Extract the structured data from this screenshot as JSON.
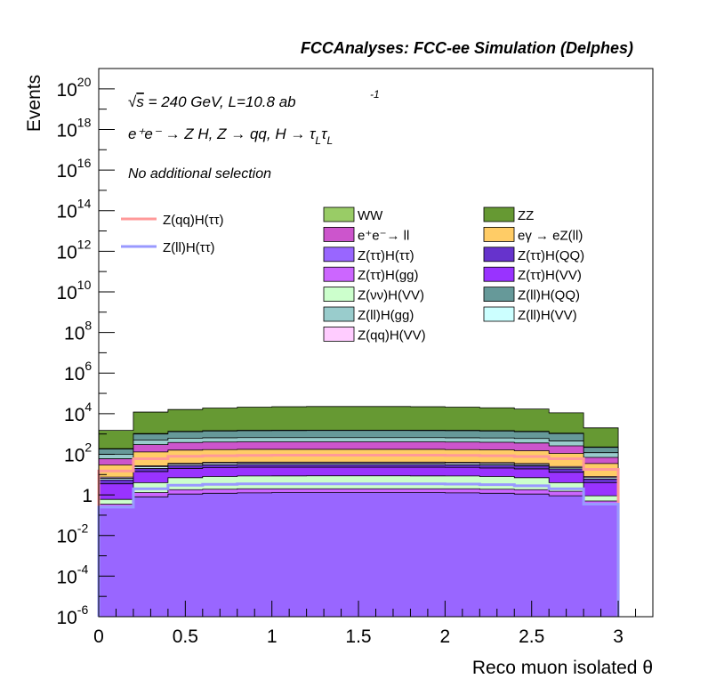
{
  "chart_data": {
    "type": "area",
    "title": "FCCAnalyses: FCC-ee Simulation (Delphes)",
    "xlabel": "Reco muon isolated θ",
    "ylabel": "Events",
    "xlim": [
      0,
      3.2
    ],
    "ylim": [
      1e-06,
      1e+21
    ],
    "yscale": "log",
    "grid": false,
    "annotations": {
      "line1_prefix": "√",
      "line1_s": "s",
      "line1_rest": " = 240 GeV, L=10.8 ab",
      "line1_sup": "-1",
      "line2": "e⁺e⁻ → Z H, Z  → qq, H  → τ",
      "line2_sub1": "L",
      "line2_tau": "τ",
      "line2_sub2": "L",
      "line3": "No additional selection"
    },
    "x_ticks": [
      "0",
      "0.5",
      "1",
      "1.5",
      "2",
      "2.5",
      "3"
    ],
    "x_tick_values": [
      0,
      0.5,
      1,
      1.5,
      2,
      2.5,
      3
    ],
    "y_ticks": [
      {
        "exp": -6,
        "base": "10",
        "sup": "-6"
      },
      {
        "exp": -4,
        "base": "10",
        "sup": "-4"
      },
      {
        "exp": -2,
        "base": "10",
        "sup": "-2"
      },
      {
        "exp": 0,
        "base": "1",
        "sup": ""
      },
      {
        "exp": 2,
        "base": "10",
        "sup": "2"
      },
      {
        "exp": 4,
        "base": "10",
        "sup": "4"
      },
      {
        "exp": 6,
        "base": "10",
        "sup": "6"
      },
      {
        "exp": 8,
        "base": "10",
        "sup": "8"
      },
      {
        "exp": 10,
        "base": "10",
        "sup": "10"
      },
      {
        "exp": 12,
        "base": "10",
        "sup": "12"
      },
      {
        "exp": 14,
        "base": "10",
        "sup": "14"
      },
      {
        "exp": 16,
        "base": "10",
        "sup": "16"
      },
      {
        "exp": 18,
        "base": "10",
        "sup": "18"
      },
      {
        "exp": 20,
        "base": "10",
        "sup": "20"
      }
    ],
    "bin_edges": [
      0,
      0.2,
      0.4,
      0.6,
      0.8,
      1.0,
      1.2,
      1.4,
      1.6,
      1.8,
      2.0,
      2.2,
      2.4,
      2.6,
      2.8,
      3.0
    ],
    "stack_order_bottom_to_top": "series list order",
    "stacked_totals": [
      {
        "name": "Z(ττ)H(ττ)",
        "color": "#9966ff",
        "values": [
          0.25,
          0.8,
          1.1,
          1.2,
          1.25,
          1.3,
          1.3,
          1.3,
          1.3,
          1.3,
          1.25,
          1.2,
          1.1,
          0.9,
          0.35
        ]
      },
      {
        "name": "Z(ττ)H(gg)",
        "color": "#cc66ff",
        "values": [
          0.35,
          1.3,
          1.8,
          1.9,
          2.0,
          2.0,
          2.0,
          2.0,
          2.0,
          2.0,
          2.0,
          1.9,
          1.8,
          1.5,
          0.5
        ]
      },
      {
        "name": "Z(νν)H(VV)",
        "color": "#ccffcc",
        "values": [
          0.6,
          4,
          7,
          8,
          8.5,
          8.6,
          8.7,
          8.7,
          8.7,
          8.6,
          8.5,
          8,
          7,
          4,
          0.9
        ]
      },
      {
        "name": "Z(ττ)H(VV)",
        "color": "#9933ff",
        "values": [
          3.5,
          14,
          20,
          22,
          23,
          23,
          23,
          23,
          23,
          23,
          22.5,
          21,
          19,
          13,
          4
        ]
      },
      {
        "name": "Z(ττ)H(QQ)",
        "color": "#6633cc",
        "values": [
          5.5,
          20,
          28,
          30,
          31,
          31,
          31,
          31,
          31,
          31,
          30,
          29,
          27,
          19,
          6
        ]
      },
      {
        "name": "Z(ll)H(VV)",
        "color": "#ccffff",
        "values": [
          6.5,
          24,
          32,
          35,
          36,
          36,
          36,
          36,
          36,
          36,
          35,
          34,
          31,
          22,
          7
        ]
      },
      {
        "name": "Z(qq)H(VV)",
        "color": "#ffccff",
        "values": [
          7.5,
          27,
          36,
          40,
          41,
          41,
          41,
          41,
          41,
          41,
          40,
          39,
          35,
          25,
          8
        ]
      },
      {
        "name": "eγ → eZ(ll)",
        "color": "#ffcc66",
        "values": [
          30,
          130,
          160,
          170,
          175,
          175,
          175,
          175,
          175,
          175,
          170,
          165,
          150,
          110,
          35
        ]
      },
      {
        "name": "e⁺e⁻→ ll",
        "color": "#cc55cc",
        "values": [
          60,
          300,
          380,
          400,
          410,
          410,
          410,
          410,
          410,
          410,
          400,
          390,
          360,
          260,
          70
        ]
      },
      {
        "name": "Z(ll)H(gg)",
        "color": "#99cccc",
        "values": [
          100,
          500,
          620,
          650,
          660,
          660,
          660,
          660,
          660,
          660,
          650,
          640,
          600,
          450,
          120
        ]
      },
      {
        "name": "Z(ll)H(QQ)",
        "color": "#669999",
        "values": [
          180,
          1000,
          1300,
          1400,
          1450,
          1470,
          1480,
          1480,
          1480,
          1470,
          1450,
          1400,
          1300,
          1050,
          220
        ]
      },
      {
        "name": "WW",
        "color": "#99cc66",
        "values": [
          190,
          1050,
          1360,
          1460,
          1510,
          1530,
          1540,
          1540,
          1540,
          1530,
          1510,
          1460,
          1360,
          1100,
          230
        ]
      },
      {
        "name": "ZZ",
        "color": "#669933",
        "values": [
          1500,
          12000,
          16000,
          19000,
          21000,
          22000,
          22500,
          22500,
          22500,
          22000,
          21000,
          19500,
          17000,
          11000,
          2000
        ]
      }
    ],
    "lines": [
      {
        "name": "Z(qq)H(ττ)",
        "color": "#ff9999",
        "values": [
          15,
          60,
          80,
          85,
          88,
          90,
          90,
          90,
          90,
          90,
          88,
          85,
          78,
          60,
          18
        ]
      },
      {
        "name": "Z(ll)H(ττ)",
        "color": "#9999ff",
        "values": [
          0.25,
          2,
          3,
          3.3,
          3.5,
          3.5,
          3.5,
          3.5,
          3.5,
          3.5,
          3.4,
          3.2,
          2.8,
          2,
          0.35
        ]
      }
    ],
    "legend": {
      "placement": "top-right",
      "lines_col": [
        "Z(qq)H(ττ)",
        "Z(ll)H(ττ)"
      ],
      "col1": [
        {
          "label": "WW",
          "color": "#99cc66"
        },
        {
          "label": "e⁺e⁻→ ll",
          "color": "#cc55cc"
        },
        {
          "label": "Z(ττ)H(ττ)",
          "color": "#9966ff"
        },
        {
          "label": "Z(ττ)H(gg)",
          "color": "#cc66ff"
        },
        {
          "label": "Z(νν)H(VV)",
          "color": "#ccffcc"
        },
        {
          "label": "Z(ll)H(gg)",
          "color": "#99cccc"
        },
        {
          "label": "Z(qq)H(VV)",
          "color": "#ffccff"
        }
      ],
      "col2": [
        {
          "label": "ZZ",
          "color": "#669933"
        },
        {
          "label": "eγ → eZ(ll)",
          "color": "#ffcc66"
        },
        {
          "label": "Z(ττ)H(QQ)",
          "color": "#6633cc"
        },
        {
          "label": "Z(ττ)H(VV)",
          "color": "#9933ff"
        },
        {
          "label": "Z(ll)H(QQ)",
          "color": "#669999"
        },
        {
          "label": "Z(ll)H(VV)",
          "color": "#ccffff"
        }
      ]
    }
  }
}
